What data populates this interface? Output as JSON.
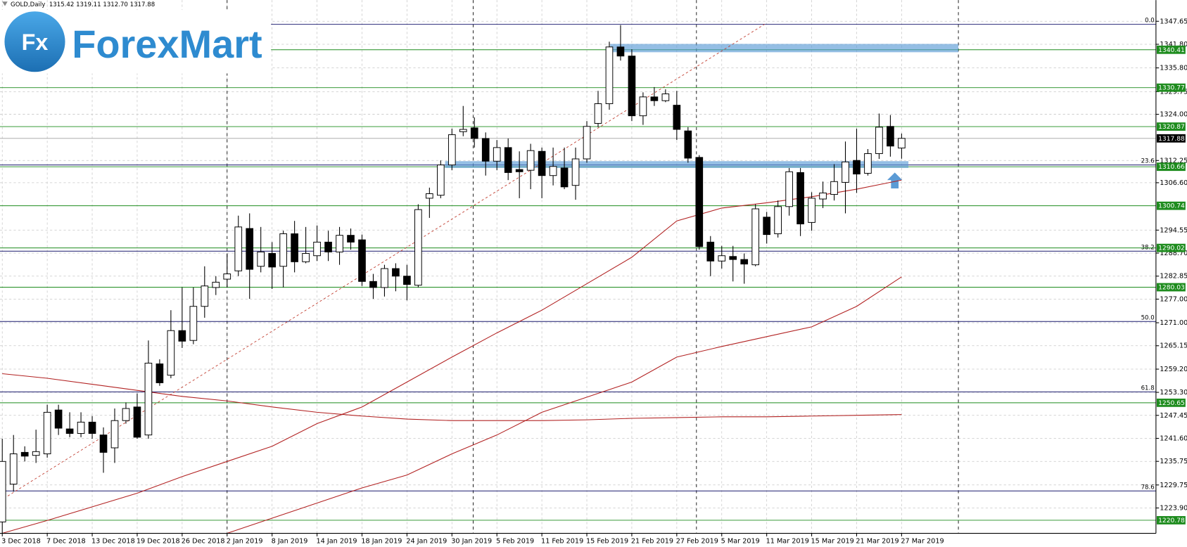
{
  "logo": {
    "badge": "Fx",
    "name": "ForexMart"
  },
  "chart_data": {
    "type": "candlestick",
    "header": "GOLD,Daily  1315.42 1319.11 1312.70 1317.88",
    "categories": [
      "3 Dec 2018",
      null,
      null,
      null,
      "7 Dec 2018",
      null,
      null,
      null,
      "13 Dec 2018",
      null,
      null,
      null,
      "19 Dec 2018",
      null,
      null,
      null,
      "26 Dec 2018",
      null,
      null,
      null,
      "2 Jan 2019",
      null,
      null,
      null,
      "8 Jan 2019",
      null,
      null,
      null,
      "14 Jan 2019",
      null,
      null,
      null,
      "18 Jan 2019",
      null,
      null,
      null,
      "24 Jan 2019",
      null,
      null,
      null,
      "30 Jan 2019",
      null,
      null,
      null,
      "5 Feb 2019",
      null,
      null,
      null,
      "11 Feb 2019",
      null,
      null,
      null,
      "15 Feb 2019",
      null,
      null,
      null,
      "21 Feb 2019",
      null,
      null,
      null,
      "27 Feb 2019",
      null,
      null,
      null,
      "5 Mar 2019",
      null,
      null,
      null,
      "11 Mar 2019",
      null,
      null,
      null,
      "15 Mar 2019",
      null,
      null,
      null,
      "21 Mar 2019",
      null,
      null,
      null,
      "27 Mar 2019"
    ],
    "open": [
      1220.35,
      1229.96,
      1238.04,
      1237.27,
      1237.66,
      1248.81,
      1244.0,
      1242.85,
      1245.73,
      1242.46,
      1239.19,
      1246.12,
      1249.58,
      1242.46,
      1260.54,
      1257.66,
      1269.0,
      1266.5,
      1275.16,
      1279.96,
      1282.08,
      1284.19,
      1294.96,
      1285.35,
      1288.62,
      1285.35,
      1293.62,
      1286.5,
      1288.04,
      1291.5,
      1289.0,
      1293.23,
      1292.08,
      1281.5,
      1279.96,
      1284.77,
      1282.85,
      1280.54,
      1302.66,
      1303.42,
      1311.12,
      1319.58,
      1320.54,
      1317.85,
      1312.08,
      1315.54,
      1309.96,
      1309.77,
      1314.58,
      1308.42,
      1310.35,
      1305.92,
      1312.66,
      1321.69,
      1326.69,
      1341.12,
      1338.81,
      1323.62,
      1328.42,
      1327.46,
      1326.31,
      1319.77,
      1313.04,
      1291.5,
      1286.69,
      1287.85,
      1287.08,
      1285.73,
      1297.85,
      1293.62,
      1300.54,
      1309.19,
      1296.5,
      1302.46,
      1303.62,
      1306.69,
      1312.27,
      1309.0,
      1314.0,
      1320.92,
      1315.42
    ],
    "high": [
      1241.5,
      1242.46,
      1239.58,
      1243.81,
      1250.15,
      1250.15,
      1248.23,
      1248.23,
      1247.27,
      1244.39,
      1249.19,
      1250.73,
      1253.04,
      1266.5,
      1261.69,
      1274.19,
      1279.96,
      1279.96,
      1285.35,
      1282.85,
      1288.62,
      1298.23,
      1298.81,
      1295.35,
      1291.5,
      1294.39,
      1296.89,
      1295.35,
      1295.73,
      1294.39,
      1295.35,
      1294.96,
      1293.42,
      1283.42,
      1285.73,
      1286.12,
      1285.73,
      1301.12,
      1305.35,
      1312.27,
      1320.35,
      1326.12,
      1323.23,
      1319.39,
      1317.46,
      1317.85,
      1314.58,
      1316.5,
      1315.54,
      1315.54,
      1315.54,
      1315.54,
      1322.27,
      1329.96,
      1342.46,
      1346.69,
      1340.54,
      1329.58,
      1330.92,
      1330.35,
      1329.96,
      1320.73,
      1313.62,
      1293.04,
      1290.54,
      1290.54,
      1288.62,
      1301.12,
      1299.19,
      1302.08,
      1310.35,
      1310.35,
      1304.19,
      1306.89,
      1311.31,
      1317.08,
      1320.35,
      1315.16,
      1324.19,
      1323.81,
      1319.11
    ],
    "low": [
      1217.46,
      1228.04,
      1235.73,
      1235.35,
      1236.69,
      1242.46,
      1241.89,
      1241.89,
      1241.5,
      1232.85,
      1235.35,
      1245.35,
      1241.5,
      1241.5,
      1254.96,
      1256.89,
      1264.58,
      1265.54,
      1272.27,
      1278.04,
      1279.96,
      1282.85,
      1277.08,
      1283.81,
      1279.58,
      1279.96,
      1283.81,
      1286.12,
      1286.69,
      1286.69,
      1285.73,
      1289.58,
      1280.35,
      1277.08,
      1277.66,
      1279.0,
      1276.69,
      1279.96,
      1297.66,
      1302.66,
      1309.77,
      1318.42,
      1315.54,
      1308.42,
      1309.77,
      1307.27,
      1302.66,
      1304.96,
      1302.66,
      1305.92,
      1304.96,
      1302.27,
      1311.69,
      1320.73,
      1325.16,
      1337.66,
      1322.27,
      1321.31,
      1326.12,
      1327.08,
      1317.46,
      1311.69,
      1289.58,
      1282.85,
      1284.77,
      1281.5,
      1280.92,
      1285.35,
      1291.12,
      1292.66,
      1298.23,
      1293.04,
      1294.39,
      1300.16,
      1302.08,
      1298.81,
      1304.0,
      1308.42,
      1312.66,
      1313.23,
      1312.7
    ],
    "close": [
      1235.73,
      1237.66,
      1237.08,
      1238.23,
      1248.23,
      1244.19,
      1242.85,
      1245.73,
      1242.85,
      1238.04,
      1246.12,
      1249.19,
      1241.89,
      1260.73,
      1255.73,
      1269.0,
      1266.31,
      1275.16,
      1280.35,
      1281.31,
      1283.42,
      1295.35,
      1284.58,
      1289.0,
      1285.16,
      1293.62,
      1286.5,
      1288.62,
      1291.5,
      1289.0,
      1293.23,
      1291.5,
      1281.5,
      1279.96,
      1284.77,
      1282.85,
      1280.73,
      1299.77,
      1303.81,
      1311.12,
      1318.81,
      1320.16,
      1317.85,
      1312.08,
      1315.54,
      1309.19,
      1309.39,
      1314.77,
      1308.42,
      1310.73,
      1305.54,
      1312.66,
      1320.92,
      1326.69,
      1341.12,
      1338.81,
      1323.62,
      1328.42,
      1327.46,
      1329.19,
      1320.16,
      1312.85,
      1290.35,
      1286.69,
      1288.04,
      1287.08,
      1285.92,
      1299.96,
      1293.42,
      1300.54,
      1309.39,
      1296.12,
      1302.66,
      1304.0,
      1306.89,
      1311.89,
      1308.81,
      1314.0,
      1320.73,
      1315.92,
      1317.88
    ],
    "up_color": "#ffffff",
    "down_color": "#000000",
    "moving_averages": [
      {
        "color": "#b22222",
        "x": [
          "3 Dec 2018",
          "7 Dec 2018",
          "13 Dec 2018",
          "19 Dec 2018",
          "26 Dec 2018",
          "2 Jan 2019",
          "8 Jan 2019",
          "14 Jan 2019",
          "18 Jan 2019",
          "24 Jan 2019",
          "30 Jan 2019",
          "5 Feb 2019",
          "11 Feb 2019",
          "15 Feb 2019",
          "21 Feb 2019",
          "27 Feb 2019",
          "5 Mar 2019",
          "11 Mar 2019",
          "15 Mar 2019",
          "21 Mar 2019",
          "27 Mar 2019"
        ],
        "values": [
          1217.46,
          1220.73,
          1224.19,
          1227.65,
          1231.88,
          1235.73,
          1239.58,
          1245.35,
          1249.58,
          1255.92,
          1262.27,
          1268.42,
          1274.19,
          1280.92,
          1287.65,
          1296.88,
          1300.16,
          1301.5,
          1303.04,
          1304.96,
          1307.27
        ]
      },
      {
        "color": "#b22222",
        "x": [
          "3 Dec 2018",
          "7 Dec 2018",
          "13 Dec 2018",
          "19 Dec 2018",
          "26 Dec 2018",
          "2 Jan 2019",
          "8 Jan 2019",
          "14 Jan 2019",
          "18 Jan 2019",
          "24 Jan 2019",
          "30 Jan 2019",
          "5 Feb 2019",
          "11 Feb 2019",
          "15 Feb 2019",
          "21 Feb 2019",
          "27 Feb 2019",
          "5 Mar 2019",
          "11 Mar 2019",
          "15 Mar 2019",
          "21 Mar 2019",
          "27 Mar 2019"
        ],
        "values": [
          null,
          null,
          null,
          null,
          null,
          1217.46,
          1221.31,
          1225.15,
          1229.0,
          1232.27,
          1237.66,
          1242.46,
          1248.23,
          1252.08,
          1255.92,
          1262.27,
          1264.96,
          1267.46,
          1269.96,
          1275.16,
          1282.66
        ]
      },
      {
        "color": "#b22222",
        "x": [
          "3 Dec 2018",
          "7 Dec 2018",
          "13 Dec 2018",
          "19 Dec 2018",
          "26 Dec 2018",
          "2 Jan 2019",
          "8 Jan 2019",
          "14 Jan 2019",
          "18 Jan 2019",
          "24 Jan 2019",
          "30 Jan 2019",
          "5 Feb 2019",
          "11 Feb 2019",
          "15 Feb 2019",
          "21 Feb 2019",
          "27 Feb 2019",
          "5 Mar 2019",
          "11 Mar 2019",
          "15 Mar 2019",
          "21 Mar 2019",
          "27 Mar 2019"
        ],
        "values": [
          1258.04,
          1256.88,
          1255.35,
          1253.81,
          1252.27,
          1251.12,
          1249.58,
          1248.23,
          1247.27,
          1246.5,
          1246.12,
          1246.12,
          1246.12,
          1246.31,
          1246.69,
          1246.88,
          1247.08,
          1247.08,
          1247.27,
          1247.46,
          1247.65
        ]
      }
    ],
    "levels": [
      1340.41,
      1330.77,
      1320.87,
      1310.66,
      1300.74,
      1290.02,
      1280.03,
      1250.65,
      1220.78
    ],
    "level_color": "#1e8c1e",
    "fib_levels": [
      {
        "value": 1346.88,
        "label": "0.0"
      },
      {
        "value": 1311.12,
        "label": "23.6"
      },
      {
        "value": 1289.19,
        "label": "38.2"
      },
      {
        "value": 1271.31,
        "label": "50.0"
      },
      {
        "value": 1253.42,
        "label": "61.8"
      },
      {
        "value": 1228.23,
        "label": "78.6"
      }
    ],
    "fib_color": "#1a1a6e",
    "ylim": [
      1217.45,
      1353.05
    ],
    "yticks": [
      {
        "value": 1347.65,
        "label": "1347.65"
      },
      {
        "value": 1341.8,
        "label": "1341.80"
      },
      {
        "value": 1335.8,
        "label": "1335.80"
      },
      {
        "value": 1329.75,
        "label": "1329.75"
      },
      {
        "value": 1324,
        "label": "1324.00"
      },
      {
        "value": 1312.25,
        "label": "1312.25"
      },
      {
        "value": 1306.6,
        "label": "1306.60"
      },
      {
        "value": 1294.55,
        "label": "1294.55"
      },
      {
        "value": 1288.7,
        "label": "1288.70"
      },
      {
        "value": 1282.85,
        "label": "1282.85"
      },
      {
        "value": 1277,
        "label": "1277.00"
      },
      {
        "value": 1271,
        "label": "1271.00"
      },
      {
        "value": 1265.15,
        "label": "1265.15"
      },
      {
        "value": 1259.2,
        "label": "1259.20"
      },
      {
        "value": 1253.3,
        "label": "1253.30"
      },
      {
        "value": 1247.45,
        "label": "1247.45"
      },
      {
        "value": 1241.6,
        "label": "1241.60"
      },
      {
        "value": 1235.75,
        "label": "1235.75"
      },
      {
        "value": 1229.75,
        "label": "1229.75"
      },
      {
        "value": 1223.9,
        "label": "1223.90"
      }
    ],
    "grid": true
  }
}
